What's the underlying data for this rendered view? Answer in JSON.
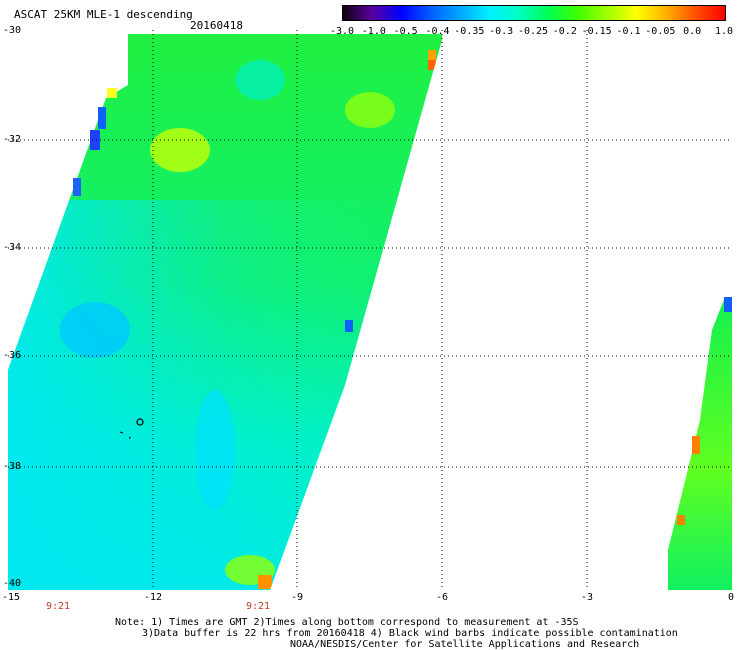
{
  "title": "ASCAT 25KM MLE-1 descending",
  "date": "20160418",
  "colorbar": {
    "labels": [
      "-3.0",
      "-1.0",
      "-0.5",
      "-0.4",
      "-0.35",
      "-0.3",
      "-0.25",
      "-0.2",
      "-0.15",
      "-0.1",
      "-0.05",
      "0.0",
      "1.0"
    ],
    "colors": [
      "#100010",
      "#5a00a0",
      "#0000ff",
      "#0060ff",
      "#00a8ff",
      "#00f0ff",
      "#00ffc0",
      "#00ff50",
      "#40ff00",
      "#a0ff00",
      "#ffff00",
      "#ffb000",
      "#ff5000",
      "#ff0000"
    ]
  },
  "latitude_labels": [
    "-30",
    "-32",
    "-34",
    "-36",
    "-38",
    "-40"
  ],
  "longitude_labels": [
    "-15",
    "-12",
    "-9",
    "-6",
    "-3",
    "0"
  ],
  "time_labels": [
    "9:21",
    "9:21"
  ],
  "notes": [
    "Note: 1) Times are GMT 2)Times along bottom correspond to measurement at -35S",
    "3)Data buffer is 22 hrs from 20160418 4) Black wind barbs indicate possible contamination",
    "NOAA/NESDIS/Center for Satellite Applications and Research"
  ]
}
